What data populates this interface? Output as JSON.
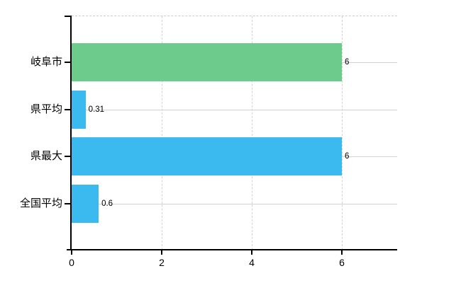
{
  "chart_data": {
    "type": "bar",
    "orientation": "horizontal",
    "title": "",
    "xlabel": "",
    "ylabel": "",
    "categories": [
      "岐阜市",
      "県平均",
      "県最大",
      "全国平均"
    ],
    "values": [
      6,
      0.31,
      6,
      0.6
    ],
    "value_labels": [
      "6",
      "0.31",
      "6",
      "0.6"
    ],
    "bar_colors": [
      "#6dcb8b",
      "#3abaef",
      "#3abaef",
      "#3abaef"
    ],
    "x_ticks": [
      "0",
      "2",
      "4",
      "6"
    ],
    "x_tick_values": [
      0,
      2,
      4,
      6
    ],
    "xlim": [
      0,
      7.24
    ],
    "grid": true,
    "legend": false,
    "colors": {
      "green_bar": "#6dcb8b",
      "blue_bar": "#3abaef",
      "gridline_horizontal": "#cdd5cd",
      "gridline_vertical": "#d2d2d2",
      "axis": "#000000",
      "background": "#ffffff"
    }
  }
}
